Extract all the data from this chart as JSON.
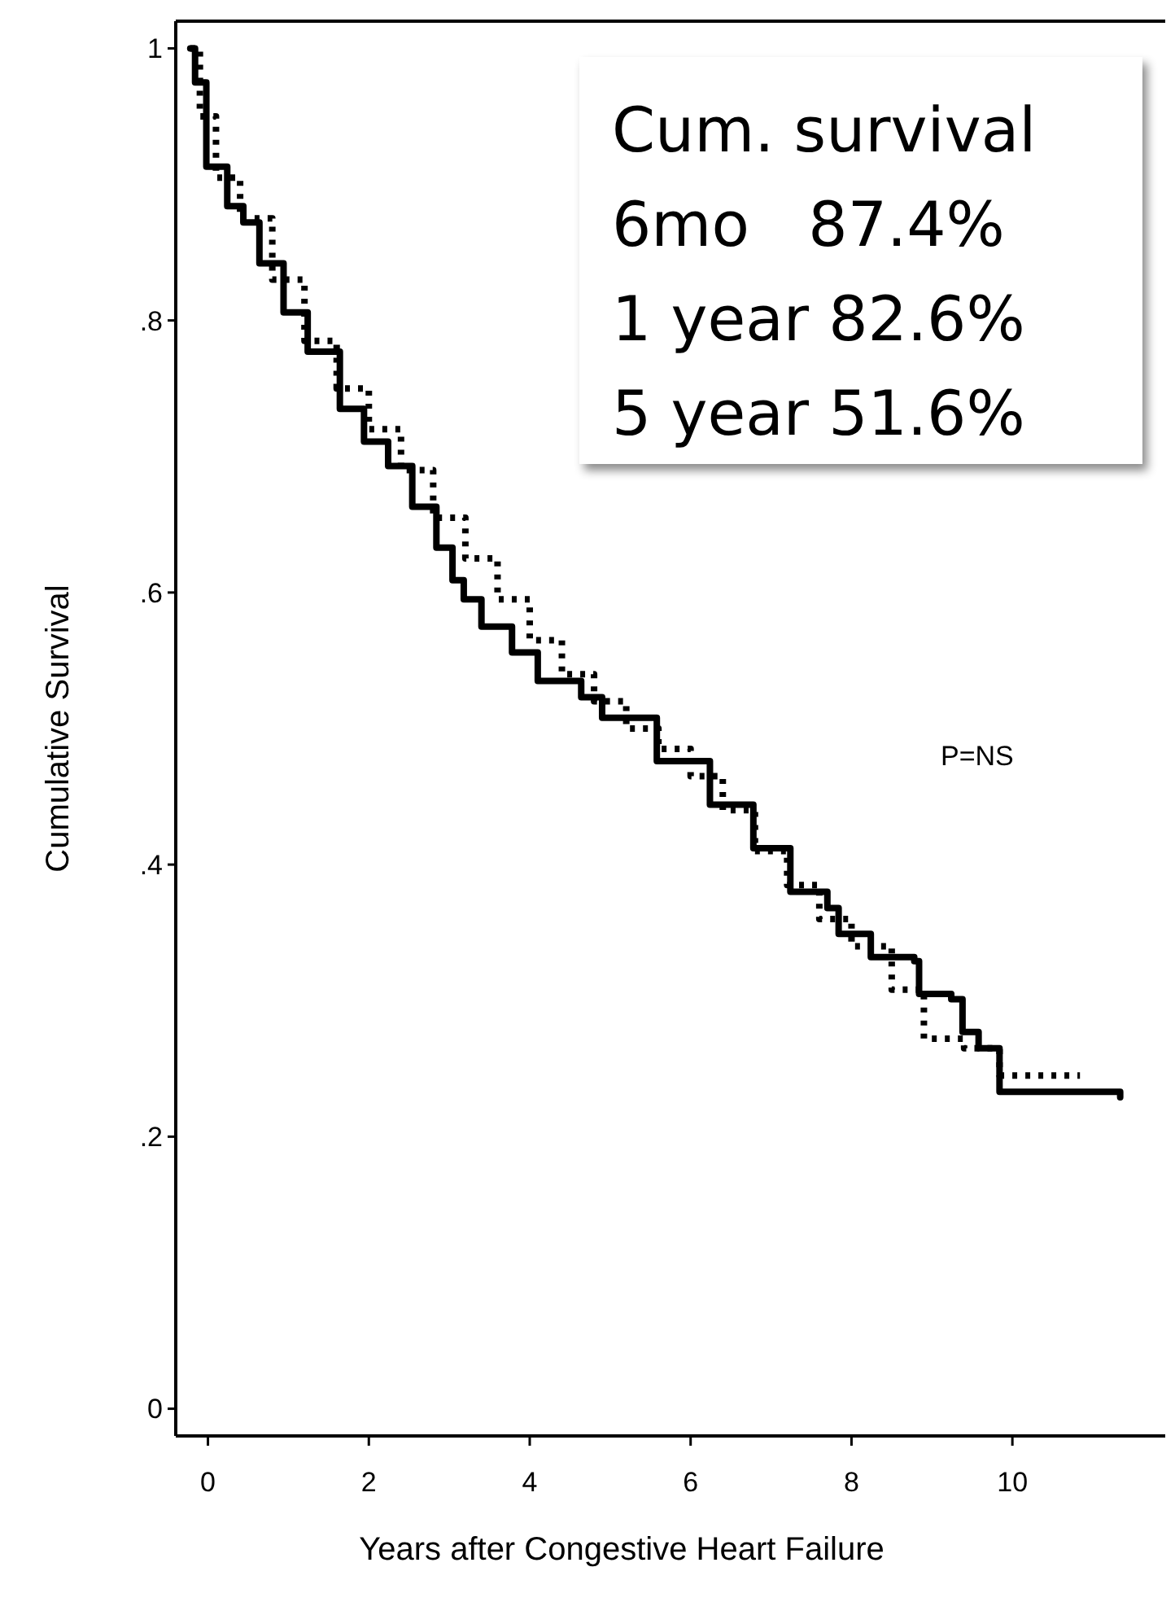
{
  "chart_data": {
    "type": "step",
    "xlabel": "Years after Congestive Heart Failure",
    "ylabel": "Cumulative Survival",
    "xlim": [
      -0.4,
      11.9
    ],
    "xticks": [
      0,
      2,
      4,
      6,
      8,
      10
    ],
    "ylim": [
      -0.02,
      1.02
    ],
    "yticks": [
      {
        "value": 0,
        "label": "0"
      },
      {
        "value": 0.2,
        "label": ".2"
      },
      {
        "value": 0.4,
        "label": ".4"
      },
      {
        "value": 0.6,
        "label": ".6"
      },
      {
        "value": 0.8,
        "label": ".8"
      },
      {
        "value": 1,
        "label": "1"
      }
    ],
    "annotations": [
      "Cum. survival",
      "6mo   87.4%",
      "1 year 82.6%",
      "5 year 51.6%",
      "P=NS"
    ],
    "series": [
      {
        "color": "#000000",
        "line_style": "solid",
        "x": [
          -0.22,
          -0.16,
          -0.02,
          0.24,
          0.44,
          0.64,
          0.94,
          1.24,
          1.64,
          1.94,
          2.24,
          2.54,
          2.84,
          3.04,
          3.18,
          3.4,
          3.78,
          4.1,
          4.64,
          4.9,
          5.58,
          6.24,
          6.78,
          7.24,
          7.7,
          7.84,
          8.24,
          8.78,
          8.84,
          9.24,
          9.38,
          9.58,
          9.84,
          11.34
        ],
        "values": [
          1.0,
          0.975,
          0.913,
          0.884,
          0.872,
          0.842,
          0.806,
          0.777,
          0.735,
          0.711,
          0.693,
          0.663,
          0.633,
          0.609,
          0.595,
          0.575,
          0.556,
          0.535,
          0.523,
          0.508,
          0.476,
          0.444,
          0.412,
          0.38,
          0.368,
          0.349,
          0.332,
          0.329,
          0.305,
          0.301,
          0.277,
          0.265,
          0.233,
          0.229
        ]
      },
      {
        "color": "#000000",
        "line_style": "dotted",
        "x": [
          -0.22,
          -0.1,
          0.1,
          0.4,
          0.8,
          1.2,
          1.6,
          2.0,
          2.4,
          2.8,
          3.2,
          3.6,
          4.0,
          4.4,
          4.8,
          5.2,
          5.6,
          6.0,
          6.4,
          6.8,
          7.2,
          7.6,
          8.0,
          8.5,
          8.9,
          9.4,
          9.84,
          10.84
        ],
        "values": [
          1.0,
          0.95,
          0.905,
          0.875,
          0.83,
          0.785,
          0.75,
          0.72,
          0.69,
          0.655,
          0.625,
          0.595,
          0.565,
          0.54,
          0.52,
          0.5,
          0.485,
          0.465,
          0.44,
          0.41,
          0.385,
          0.36,
          0.34,
          0.308,
          0.272,
          0.265,
          0.245,
          0.245
        ]
      }
    ]
  }
}
